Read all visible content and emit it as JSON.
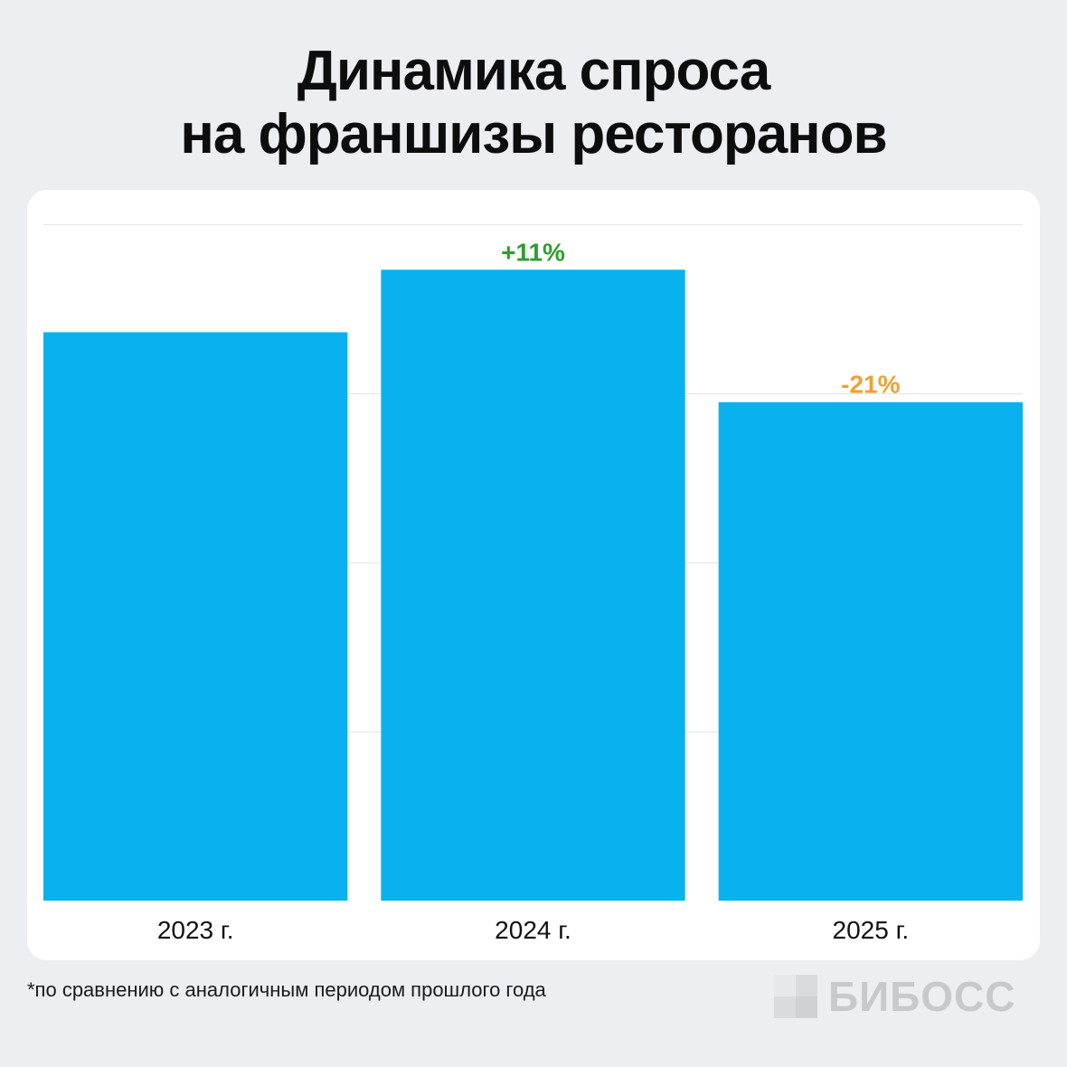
{
  "title": {
    "line1": "Динамика спроса",
    "line2": "на франшизы ресторанов"
  },
  "chart_data": {
    "type": "bar",
    "title": "Динамика спроса на франшизы ресторанов",
    "categories": [
      "2023 г.",
      "2024 г.",
      "2025 г."
    ],
    "values": [
      100,
      111,
      87.7
    ],
    "annotations": [
      "",
      "+11%",
      "-21%"
    ],
    "annotation_colors": [
      "",
      "#2ca02c",
      "#f0a030"
    ],
    "bar_color": "#09b2ee",
    "ylim": [
      0,
      119
    ],
    "grid": true,
    "gridline_values": [
      29.8,
      59.5,
      89.3,
      119
    ]
  },
  "footnote": "*по сравнению с аналогичным периодом прошлого года",
  "brand": {
    "name": "БИБОСС",
    "color": "#c7c9cd"
  }
}
